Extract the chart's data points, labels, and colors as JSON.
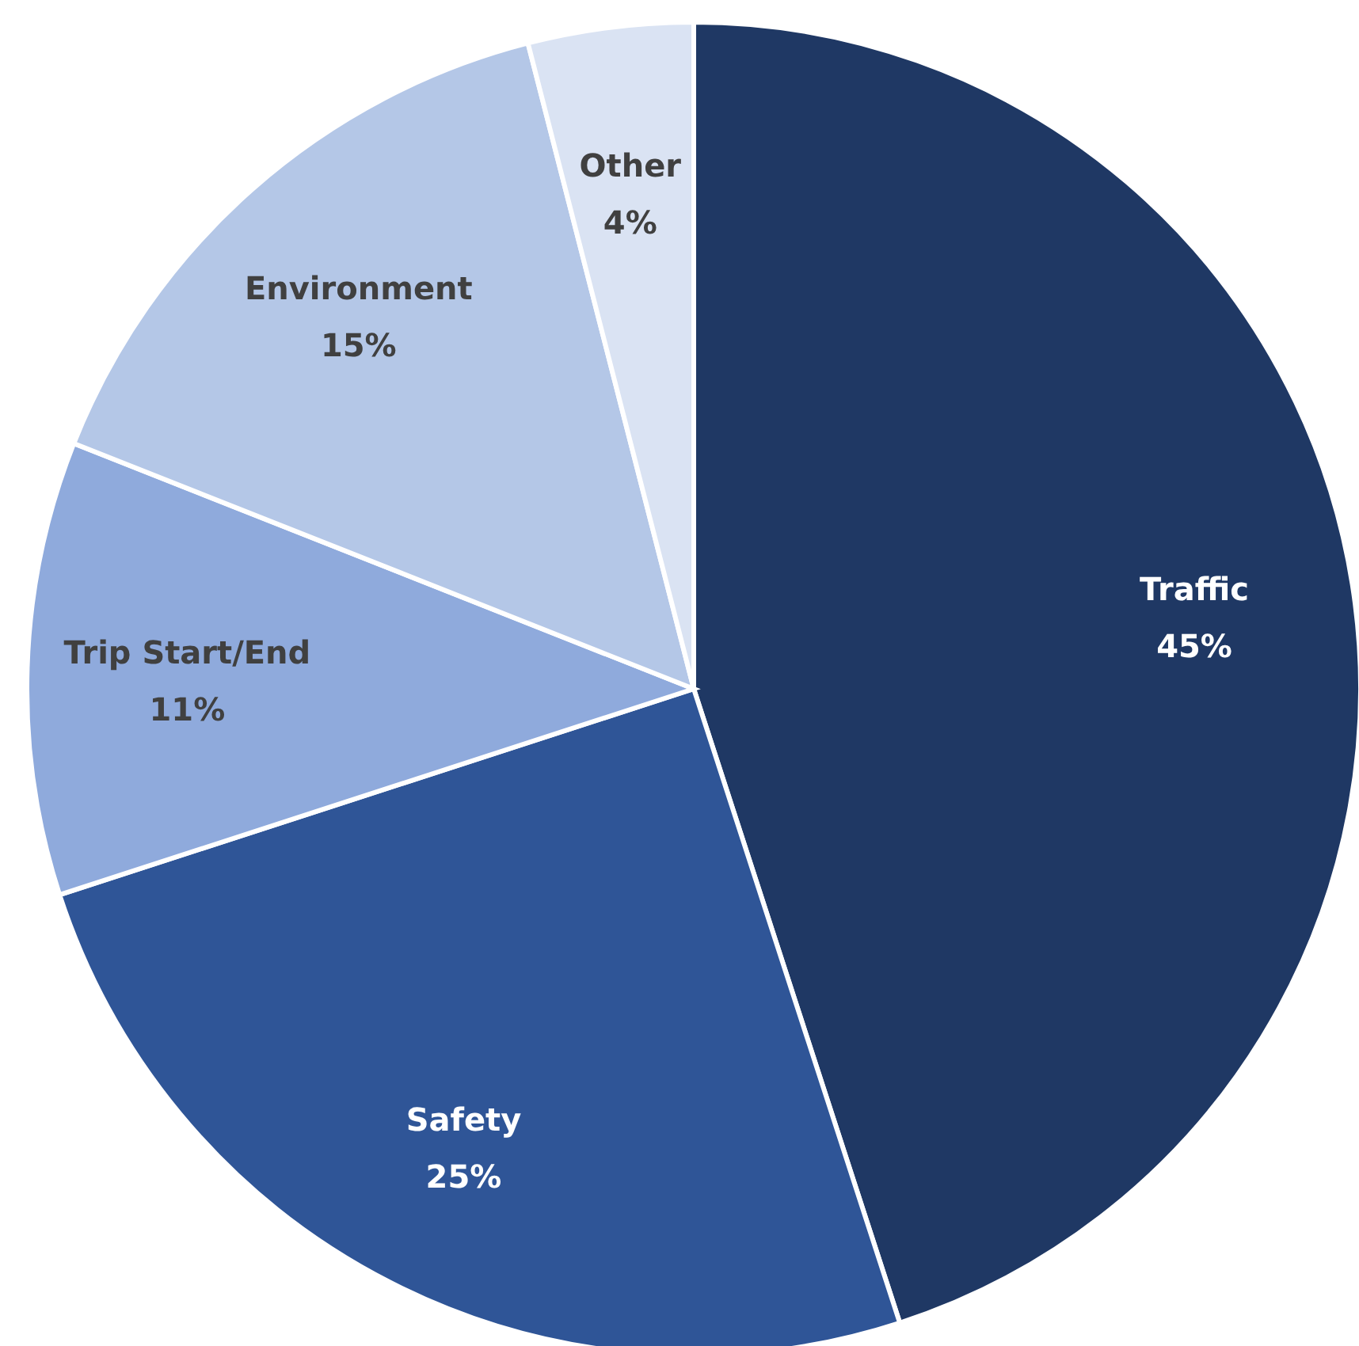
{
  "chart_data": {
    "type": "pie",
    "categories": [
      "Traffic",
      "Safety",
      "Trip Start/End",
      "Environment",
      "Other"
    ],
    "values": [
      45,
      25,
      11,
      15,
      4
    ],
    "value_labels": [
      "45%",
      "25%",
      "11%",
      "15%",
      "4%"
    ],
    "colors": [
      "#1f3864",
      "#2f5597",
      "#8faadc",
      "#b4c7e7",
      "#dae3f3"
    ],
    "legend": false
  }
}
